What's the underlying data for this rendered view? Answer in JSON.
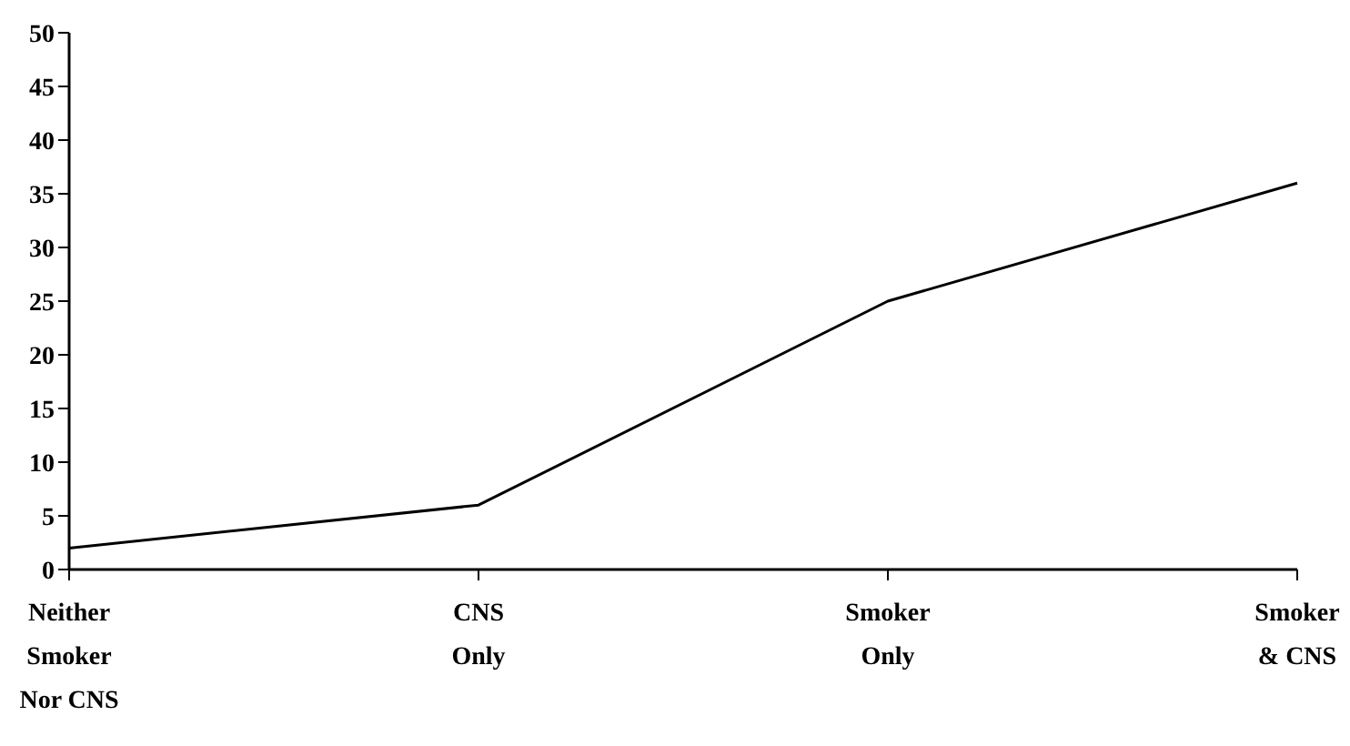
{
  "chart_data": {
    "type": "line",
    "categories": [
      "Neither Smoker Nor CNS",
      "CNS Only",
      "Smoker Only",
      "Smoker & CNS"
    ],
    "series": [
      {
        "color": "#000000",
        "values": [
          2,
          6,
          25,
          36
        ]
      }
    ],
    "ylim": [
      0,
      50
    ],
    "yticks": [
      0,
      5,
      10,
      15,
      20,
      25,
      30,
      35,
      40,
      45,
      50
    ],
    "grid": false,
    "legend": false,
    "marker": "none",
    "line_style": "solid"
  }
}
